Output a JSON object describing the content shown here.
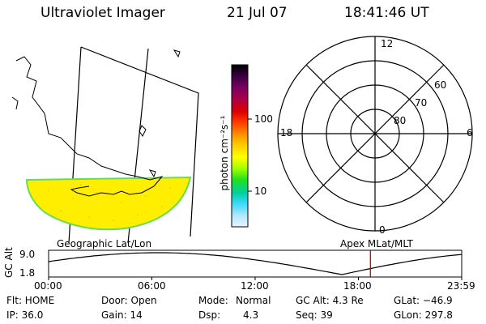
{
  "header": {
    "title": "Ultraviolet Imager",
    "date": "21 Jul 07",
    "time": "18:41:46 UT"
  },
  "colorbar": {
    "label": "photon cm⁻²s⁻¹",
    "ticks": [
      "100",
      "10"
    ],
    "colors": [
      "#000000",
      "#3a0040",
      "#7a0060",
      "#b00040",
      "#e00000",
      "#ff4000",
      "#ff9000",
      "#ffd000",
      "#ffff00",
      "#a0ff00",
      "#20e020",
      "#00d0a0",
      "#40d8ff",
      "#b0e8ff",
      "#e8f4ff"
    ]
  },
  "left_map": {
    "label": "Geographic Lat/Lon",
    "oval_fill": "#ffee00",
    "oval_edge": "#66dd55"
  },
  "polar_plot": {
    "label": "Apex  MLat/MLT",
    "mlt_labels": {
      "top": "12",
      "left": "18",
      "right": "6",
      "bottom": "0"
    },
    "lat_labels": [
      "60",
      "70",
      "80"
    ]
  },
  "timeline": {
    "ylabel": "GC Alt",
    "y_ticks": [
      "9.0",
      "1.8"
    ],
    "x_ticks": [
      "00:00",
      "06:00",
      "12:00",
      "18:00",
      "23:59"
    ],
    "marker_color": "#cc0000",
    "marker_time_hours": 18.696
  },
  "info": {
    "row1": {
      "flt": "Flt: HOME",
      "door": "Door: Open",
      "mode_label": "Mode:",
      "mode_value": "Normal",
      "gcalt": "GC Alt: 4.3 Re",
      "glat": "GLat: −46.9"
    },
    "row2": {
      "ip": "IP: 36.0",
      "gain": "Gain: 14",
      "dsp_label": "Dsp:",
      "dsp_value": "4.3",
      "seq": "Seq: 39",
      "glon": "GLon: 297.8"
    }
  }
}
